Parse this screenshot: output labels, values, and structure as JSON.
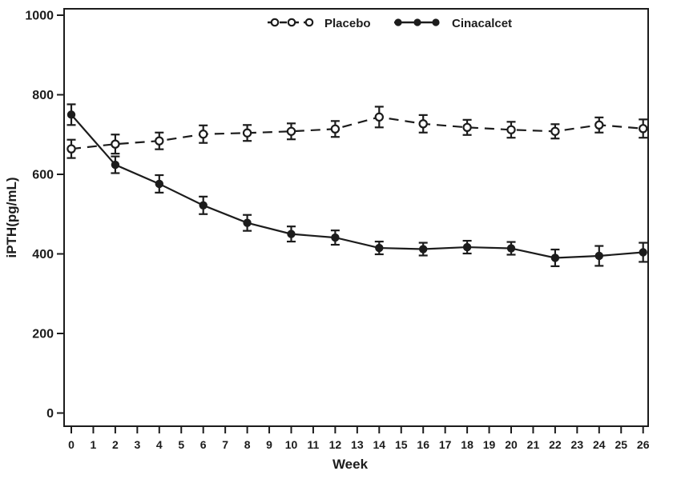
{
  "figure": {
    "background": "#ffffff",
    "ink_color": "#1c1c1c"
  },
  "chart_data": {
    "type": "line",
    "title": "",
    "xlabel": "Week",
    "ylabel": "iPTH(pg/mL)",
    "x": [
      0,
      2,
      4,
      6,
      8,
      10,
      12,
      14,
      16,
      18,
      20,
      22,
      24,
      26
    ],
    "series": [
      {
        "name": "Placebo",
        "line_style": "dashed",
        "marker": "open-circle",
        "values": [
          664,
          676,
          684,
          701,
          704,
          708,
          714,
          744,
          727,
          718,
          712,
          708,
          724,
          715
        ],
        "errors": [
          23,
          24,
          21,
          22,
          20,
          20,
          20,
          26,
          22,
          19,
          20,
          18,
          19,
          23
        ]
      },
      {
        "name": "Cinacalcet",
        "line_style": "solid",
        "marker": "filled-circle",
        "values": [
          750,
          624,
          576,
          522,
          478,
          450,
          441,
          415,
          412,
          417,
          414,
          390,
          395,
          404
        ],
        "errors": [
          26,
          21,
          22,
          22,
          20,
          19,
          18,
          16,
          16,
          16,
          16,
          21,
          25,
          24
        ]
      }
    ],
    "ylim": [
      0,
      1000
    ],
    "yticks": [
      0,
      200,
      400,
      600,
      800,
      1000
    ],
    "xticks": [
      0,
      1,
      2,
      3,
      4,
      5,
      6,
      7,
      8,
      9,
      10,
      11,
      12,
      13,
      14,
      15,
      16,
      17,
      18,
      19,
      20,
      21,
      22,
      23,
      24,
      25,
      26
    ],
    "xlim": [
      0,
      26
    ],
    "grid": false,
    "error_bars": true,
    "legend_position": "top-center-inside",
    "frame": "full-box"
  }
}
